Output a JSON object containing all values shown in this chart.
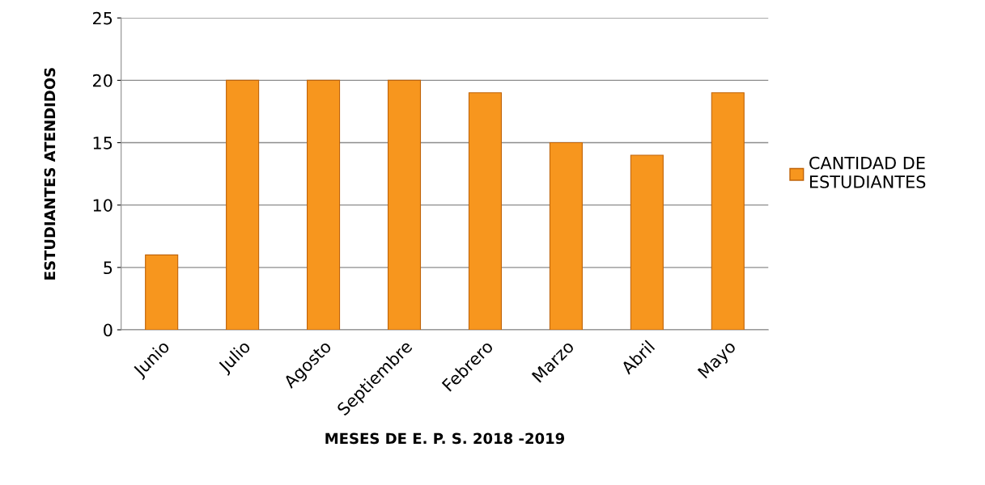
{
  "chart_data": {
    "type": "bar",
    "categories": [
      "Junio",
      "Julio",
      "Agosto",
      "Septiembre",
      "Febrero",
      "Marzo",
      "Abril",
      "Mayo"
    ],
    "series": [
      {
        "name": "CANTIDAD DE ESTUDIANTES",
        "color": "#f7961e",
        "values": [
          6,
          20,
          20,
          20,
          19,
          15,
          14,
          19
        ]
      }
    ],
    "xlabel": "MESES DE E. P. S. 2018 -2019",
    "ylabel": "ESTUDIANTES ATENDIDOS",
    "ylim": [
      0,
      25
    ],
    "yticks": [
      0,
      5,
      10,
      15,
      20,
      25
    ],
    "grid": "y",
    "legend": "right"
  }
}
